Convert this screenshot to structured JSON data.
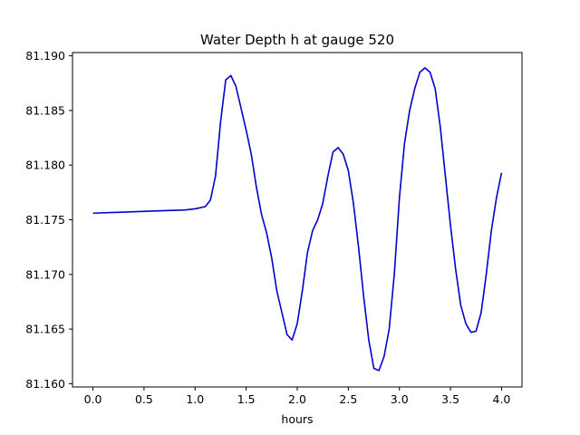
{
  "chart_data": {
    "type": "line",
    "title": "Water Depth h at gauge 520",
    "xlabel": "hours",
    "ylabel": "",
    "xlim": [
      -0.2,
      4.2
    ],
    "ylim": [
      81.1597,
      81.1903
    ],
    "grid": false,
    "x_ticks": [
      {
        "value": 0.0,
        "label": "0.0"
      },
      {
        "value": 0.5,
        "label": "0.5"
      },
      {
        "value": 1.0,
        "label": "1.0"
      },
      {
        "value": 1.5,
        "label": "1.5"
      },
      {
        "value": 2.0,
        "label": "2.0"
      },
      {
        "value": 2.5,
        "label": "2.5"
      },
      {
        "value": 3.0,
        "label": "3.0"
      },
      {
        "value": 3.5,
        "label": "3.5"
      },
      {
        "value": 4.0,
        "label": "4.0"
      }
    ],
    "y_ticks": [
      {
        "value": 81.16,
        "label": "81.160"
      },
      {
        "value": 81.165,
        "label": "81.165"
      },
      {
        "value": 81.17,
        "label": "81.170"
      },
      {
        "value": 81.175,
        "label": "81.175"
      },
      {
        "value": 81.18,
        "label": "81.180"
      },
      {
        "value": 81.185,
        "label": "81.185"
      },
      {
        "value": 81.19,
        "label": "81.190"
      }
    ],
    "series": [
      {
        "color": "#0000cc",
        "x": [
          0.0,
          0.3,
          0.6,
          0.9,
          1.0,
          1.1,
          1.15,
          1.2,
          1.25,
          1.3,
          1.35,
          1.4,
          1.45,
          1.5,
          1.55,
          1.6,
          1.65,
          1.7,
          1.75,
          1.8,
          1.85,
          1.9,
          1.95,
          2.0,
          2.05,
          2.1,
          2.15,
          2.2,
          2.25,
          2.3,
          2.35,
          2.4,
          2.45,
          2.5,
          2.55,
          2.6,
          2.65,
          2.7,
          2.75,
          2.8,
          2.85,
          2.9,
          2.95,
          3.0,
          3.05,
          3.1,
          3.15,
          3.2,
          3.25,
          3.3,
          3.35,
          3.4,
          3.45,
          3.5,
          3.55,
          3.6,
          3.65,
          3.7,
          3.75,
          3.8,
          3.85,
          3.9,
          3.95,
          4.0
        ],
        "y": [
          81.1756,
          81.1757,
          81.1758,
          81.1759,
          81.176,
          81.1762,
          81.1768,
          81.179,
          81.184,
          81.1878,
          81.1882,
          81.1872,
          81.1852,
          81.1832,
          81.181,
          81.178,
          81.1755,
          81.1738,
          81.1715,
          81.1685,
          81.1665,
          81.1645,
          81.164,
          81.1655,
          81.1685,
          81.172,
          81.174,
          81.175,
          81.1765,
          81.179,
          81.1812,
          81.1816,
          81.181,
          81.1795,
          81.1765,
          81.1725,
          81.168,
          81.164,
          81.1614,
          81.1612,
          81.1625,
          81.165,
          81.17,
          81.177,
          81.182,
          81.185,
          81.187,
          81.1885,
          81.1889,
          81.1885,
          81.187,
          81.1835,
          81.179,
          81.1745,
          81.1705,
          81.1672,
          81.1655,
          81.1647,
          81.1648,
          81.1665,
          81.17,
          81.174,
          81.177,
          81.1793
        ]
      }
    ]
  }
}
